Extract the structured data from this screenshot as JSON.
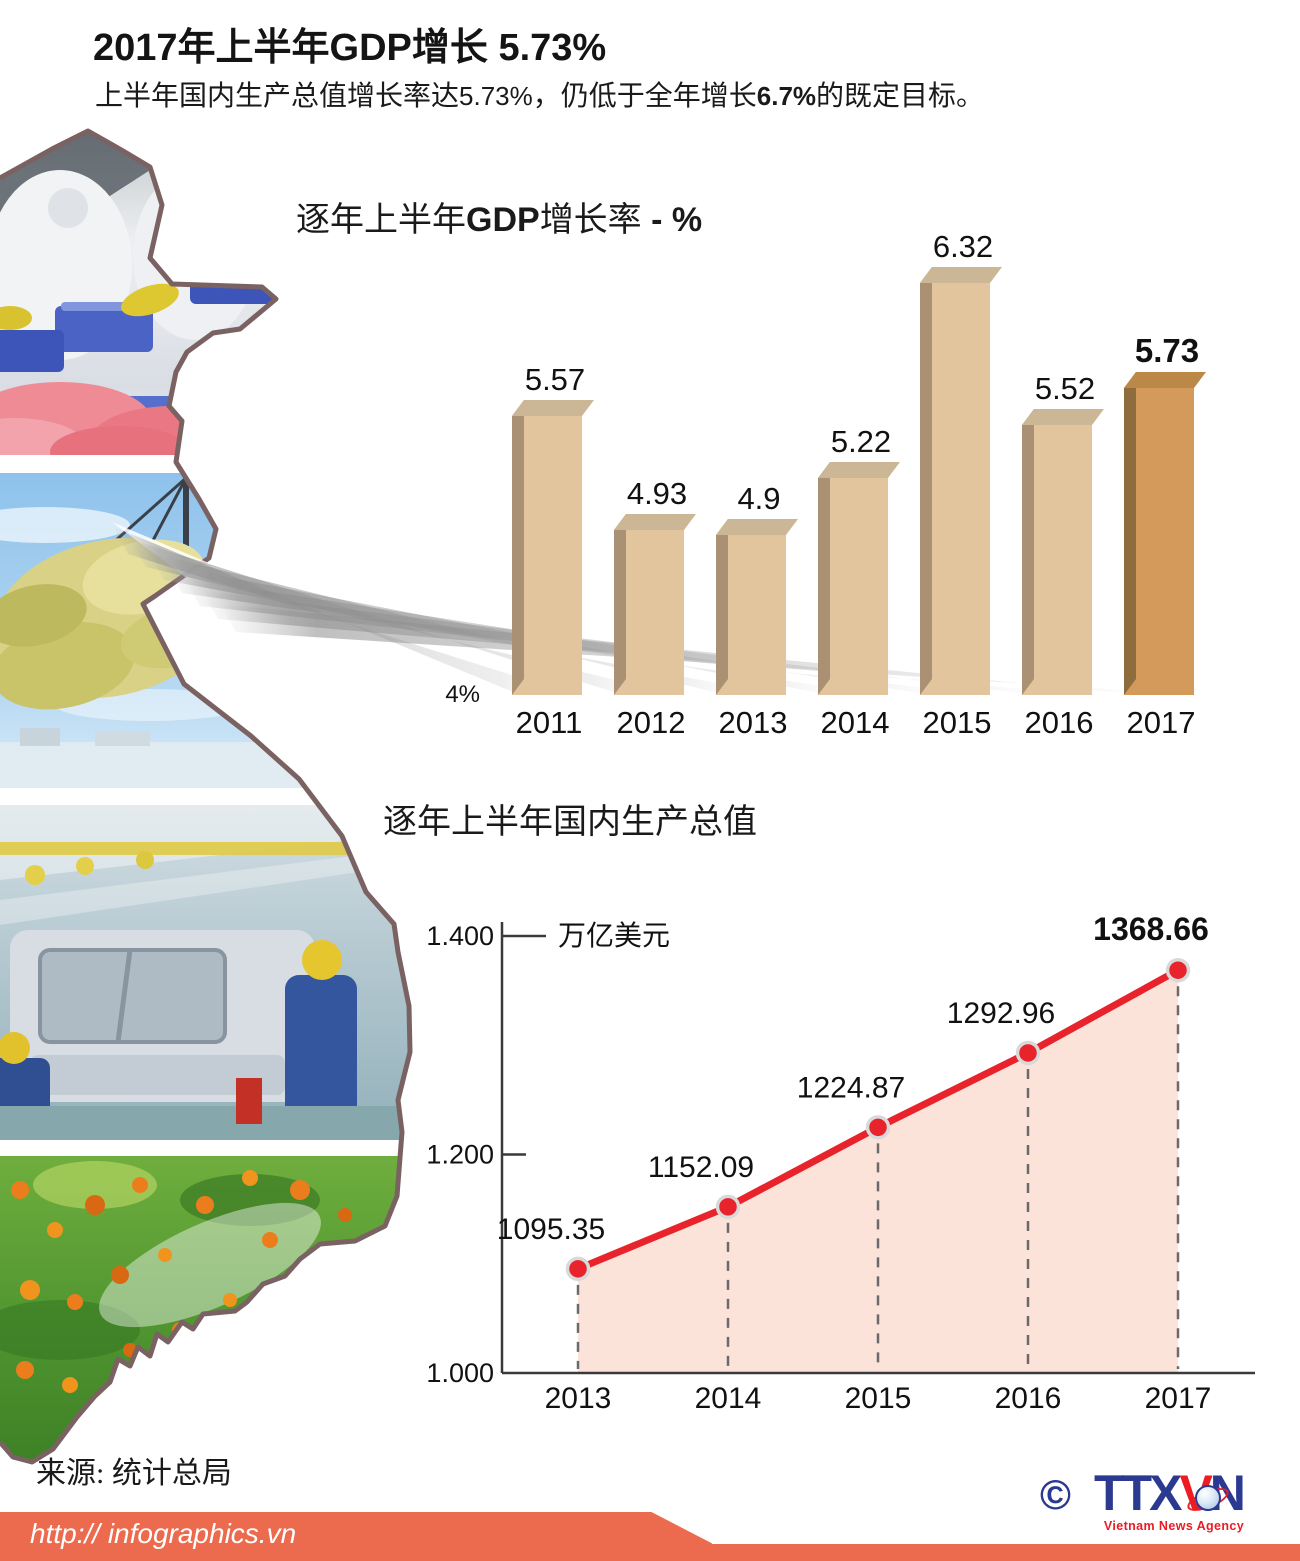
{
  "header": {
    "title": "2017年上半年GDP增长 5.73%",
    "subtitle": [
      "上半年国内生产总值增长率达",
      "5.73%",
      "，仍低于全年增长",
      "6.7%",
      "的既定目标。"
    ]
  },
  "bar_chart": {
    "title_parts": [
      "逐年上半年",
      "GDP",
      "增长率",
      " - %"
    ],
    "baseline_label": "4%"
  },
  "line_chart": {
    "title": "逐年上半年国内生产总值",
    "unit_label": "万亿美元"
  },
  "chart_data": [
    {
      "type": "bar",
      "title": "逐年上半年GDP增长率 - %",
      "categories": [
        "2011",
        "2012",
        "2013",
        "2014",
        "2015",
        "2016",
        "2017"
      ],
      "values": [
        5.57,
        4.93,
        4.9,
        5.22,
        6.32,
        5.52,
        5.73
      ],
      "value_labels": [
        "5.57",
        "4.93",
        "4.9",
        "5.22",
        "6.32",
        "5.52",
        "5.73"
      ],
      "baseline": 4,
      "baseline_label": "4%",
      "unit": "%",
      "highlight_last": true,
      "bar_color": "#e2c59c",
      "highlight_color": "#d39a5c"
    },
    {
      "type": "area",
      "title": "逐年上半年国内生产总值",
      "x": [
        "2013",
        "2014",
        "2015",
        "2016",
        "2017"
      ],
      "values": [
        1095.35,
        1152.09,
        1224.87,
        1292.96,
        1368.66
      ],
      "value_labels": [
        "1095.35",
        "1152.09",
        "1224.87",
        "1292.96",
        "1368.66"
      ],
      "ylabel": "万亿美元",
      "ylim": [
        1000,
        1400
      ],
      "yticks": [
        1000,
        1200,
        1400
      ],
      "ytick_labels": [
        "1.000",
        "1.200",
        "1.400"
      ],
      "line_color": "#e8232b",
      "fill_color": "#fce3d9"
    }
  ],
  "footer": {
    "source": "来源: 统计总局",
    "copyright": "©",
    "logo_ttx": "TTX",
    "logo_v": "V",
    "logo_n": "N",
    "agency": "Vietnam News Agency",
    "url": "http:// infographics.vn"
  }
}
